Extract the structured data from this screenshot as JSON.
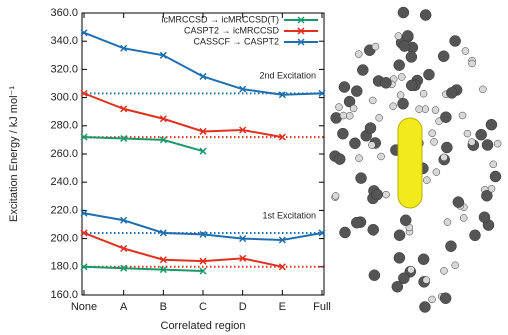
{
  "chart_data": {
    "type": "line",
    "y_label": "Excitation Energy / kJ mol⁻¹",
    "x_label": "Correlated region",
    "categories": [
      "None",
      "A",
      "B",
      "C",
      "D",
      "E",
      "Full"
    ],
    "ylim": [
      160,
      360
    ],
    "yticks": [
      {
        "value": 160,
        "label": "160.0"
      },
      {
        "value": 180,
        "label": "180.0"
      },
      {
        "value": 200,
        "label": "200.0"
      },
      {
        "value": 220,
        "label": "220.0"
      },
      {
        "value": 240,
        "label": "240.0"
      },
      {
        "value": 260,
        "label": "260.0"
      },
      {
        "value": 280,
        "label": "280.0"
      },
      {
        "value": 300,
        "label": "300.0"
      },
      {
        "value": 320,
        "label": "320.0"
      },
      {
        "value": 340,
        "label": "340.0"
      },
      {
        "value": 360,
        "label": "360.0"
      }
    ],
    "legend_position": "upper right",
    "groups": [
      {
        "label": "2nd Excitation",
        "series": [
          {
            "name": "icMRCCSD → icMRCCSD(T)",
            "color": "#18996a",
            "values": [
              272,
              271,
              270,
              262,
              null,
              null,
              null
            ]
          },
          {
            "name": "CASPT2 → icMRCCSD",
            "color": "#e0301e",
            "values": [
              303,
              292,
              285,
              276,
              277,
              272,
              null
            ]
          },
          {
            "name": "CASSCF → CASPT2",
            "color": "#1f6fb0",
            "values": [
              346,
              335,
              330,
              315,
              306,
              302,
              303
            ]
          }
        ],
        "references": [
          {
            "value": 272,
            "color": "#e0301e"
          },
          {
            "value": 303,
            "color": "#1f6fb0"
          }
        ]
      },
      {
        "label": "1st Excitation",
        "series": [
          {
            "color": "#18996a",
            "values": [
              180,
              179,
              178,
              177,
              null,
              null,
              null
            ]
          },
          {
            "color": "#e0301e",
            "values": [
              204,
              193,
              185,
              184,
              186,
              180,
              null
            ]
          },
          {
            "color": "#1f6fb0",
            "values": [
              218,
              213,
              204,
              203,
              200,
              199,
              204
            ]
          }
        ],
        "references": [
          {
            "value": 180,
            "color": "#e0301e"
          },
          {
            "value": 204,
            "color": "#1f6fb0"
          }
        ]
      }
    ]
  }
}
